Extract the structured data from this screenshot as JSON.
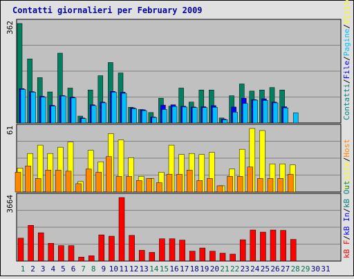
{
  "chart_data": {
    "type": "bar",
    "title": "Contatti giornalieri per February 2009",
    "categories": [
      "1",
      "2",
      "3",
      "4",
      "5",
      "6",
      "7",
      "8",
      "9",
      "10",
      "11",
      "12",
      "13",
      "14",
      "15",
      "16",
      "17",
      "18",
      "19",
      "20",
      "21",
      "22",
      "23",
      "24",
      "25",
      "26",
      "27",
      "28",
      "29",
      "30",
      "31"
    ],
    "weekend_days": [
      "1",
      "7",
      "8",
      "14",
      "15",
      "21",
      "22",
      "28",
      "29"
    ],
    "panels": [
      {
        "ymax_label": "362",
        "ymax": 362,
        "side_label": [
          {
            "text": "Contatti",
            "color": "#008080"
          },
          {
            "text": "/",
            "color": "#000000"
          },
          {
            "text": "File",
            "color": "#0000ff"
          },
          {
            "text": "/",
            "color": "#000000"
          },
          {
            "text": "Pagine",
            "color": "#00c0ff"
          },
          {
            "text": "/",
            "color": "#000000"
          },
          {
            "text": "Visite",
            "color": "#ffff00"
          }
        ],
        "series": [
          {
            "name": "Contatti",
            "color": "#008060",
            "values": [
              362,
              233,
              165,
              113,
              254,
              127,
              25,
              120,
              172,
              220,
              182,
              57,
              49,
              38,
              90,
              61,
              127,
              76,
              120,
              120,
              18,
              99,
              142,
              116,
              120,
              129,
              120,
              0,
              null,
              null,
              null
            ]
          },
          {
            "name": "File",
            "color": "#0000ff",
            "values": [
              125,
              114,
              97,
              64,
              100,
              94,
              18,
              66,
              76,
              115,
              112,
              55,
              48,
              22,
              65,
              66,
              61,
              58,
              59,
              63,
              14,
              58,
              90,
              85,
              88,
              76,
              59,
              0,
              null,
              null,
              null
            ]
          },
          {
            "name": "Pagine",
            "color": "#00c0ff",
            "values": [
              122,
              112,
              94,
              61,
              98,
              91,
              16,
              63,
              73,
              112,
              108,
              52,
              45,
              20,
              49,
              60,
              58,
              56,
              56,
              57,
              12,
              39,
              71,
              83,
              82,
              73,
              55,
              37,
              null,
              null,
              null
            ]
          }
        ]
      },
      {
        "ymax_label": "61",
        "ymax": 61,
        "side_label": [
          {
            "text": "Visite",
            "color": "#ffff00"
          },
          {
            "text": "/",
            "color": "#000000"
          },
          {
            "text": "Host",
            "color": "#ff8800"
          }
        ],
        "series": [
          {
            "name": "Visite",
            "color": "#ffff00",
            "values": [
              23,
              37,
              45,
              37,
              43,
              48,
              10,
              40,
              29,
              56,
              50,
              33,
              15,
              13,
              19,
              45,
              36,
              37,
              36,
              38,
              6,
              22,
              41,
              61,
              59,
              27,
              27,
              26,
              null,
              null,
              null
            ]
          },
          {
            "name": "Host",
            "color": "#ff8800",
            "values": [
              19,
              25,
              13,
              21,
              21,
              20,
              8,
              22,
              19,
              34,
              15,
              15,
              11,
              13,
              9,
              17,
              17,
              21,
              11,
              13,
              6,
              15,
              15,
              24,
              13,
              13,
              13,
              17,
              null,
              null,
              null
            ]
          }
        ]
      },
      {
        "ymax_label": "3664",
        "ymax": 3664,
        "side_label": [
          {
            "text": "kB F",
            "color": "#ff0000"
          },
          {
            "text": "/",
            "color": "#000000"
          },
          {
            "text": "kB In",
            "color": "#0000ff"
          },
          {
            "text": "/",
            "color": "#000000"
          },
          {
            "text": "kB Out",
            "color": "#008080"
          }
        ],
        "series": [
          {
            "name": "kB F",
            "color": "#ff0000",
            "values": [
              1320,
              2060,
              1632,
              1025,
              890,
              890,
              230,
              304,
              1510,
              1434,
              3664,
              1480,
              620,
              500,
              1287,
              1287,
              1210,
              570,
              753,
              570,
              455,
              400,
              1230,
              1790,
              1670,
              1790,
              1770,
              1250,
              null,
              null,
              null
            ]
          }
        ]
      }
    ]
  }
}
